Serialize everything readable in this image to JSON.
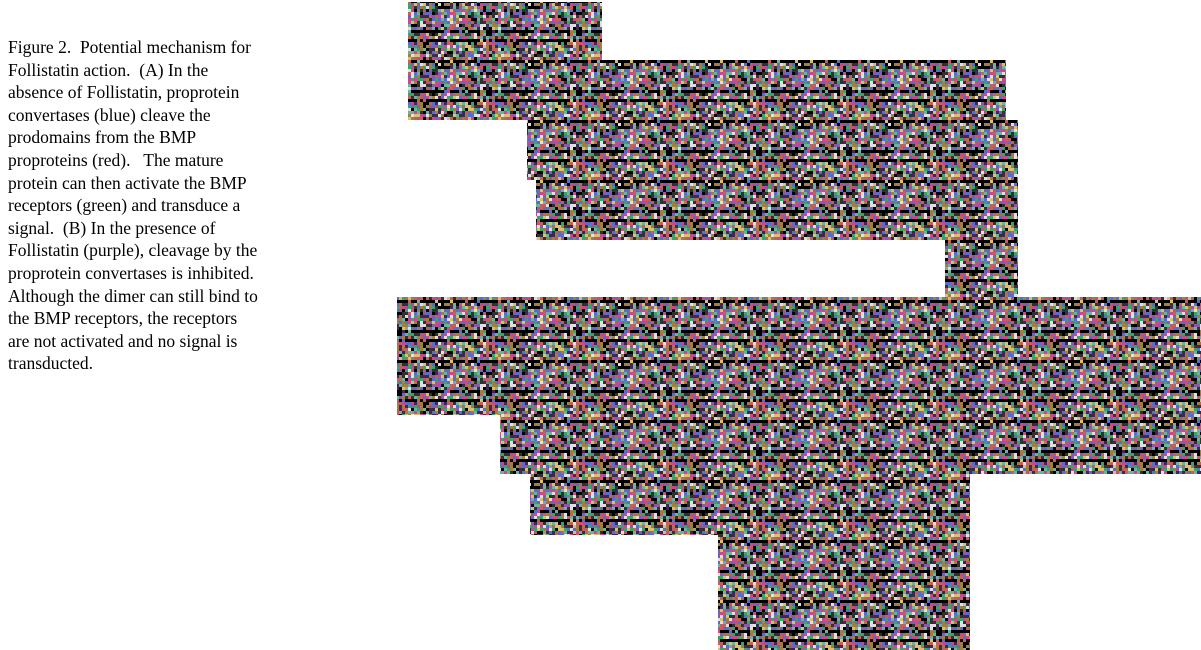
{
  "caption": {
    "lines": [
      "Figure 2.  Potential mechanism for",
      "Follistatin action.  (A) In the",
      "absence of Follistatin, proprotein",
      "convertases (blue) cleave the",
      "prodomains from the BMP",
      "proproteins (red).   The mature",
      "protein can then activate the BMP",
      "receptors (green) and transduce a",
      "signal.  (B) In the presence of",
      "Follistatin (purple), cleavage by the",
      "proprotein convertases is inhibited.",
      "Although the dimer can still bind to",
      "the BMP receptors, the receptors",
      "are not activated and no signal is",
      "transducted."
    ]
  }
}
